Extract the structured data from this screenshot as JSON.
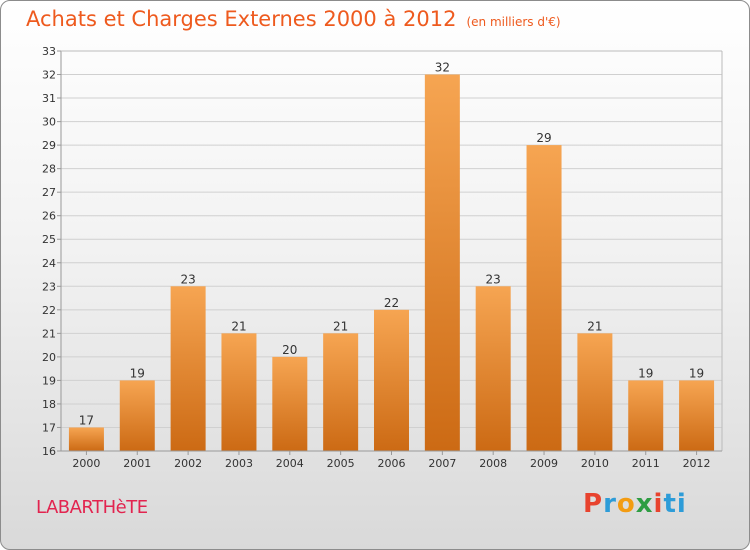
{
  "header": {
    "title": "Achats et Charges Externes 2000 à 2012",
    "subtitle": "(en milliers d'€)"
  },
  "footer": {
    "commune": "LABARTHèTE",
    "logo_letters": [
      "P",
      "r",
      "o",
      "x",
      "i",
      "ti"
    ]
  },
  "colors": {
    "bar_top": "#f6a552",
    "bar_bottom": "#cc6a14",
    "title": "#ee5a1e",
    "commune": "#e2244f"
  },
  "chart_data": {
    "type": "bar",
    "categories": [
      "2000",
      "2001",
      "2002",
      "2003",
      "2004",
      "2005",
      "2006",
      "2007",
      "2008",
      "2009",
      "2010",
      "2011",
      "2012"
    ],
    "values": [
      17,
      19,
      23,
      21,
      20,
      21,
      22,
      32,
      23,
      29,
      21,
      19,
      19
    ],
    "ylim": [
      16,
      33
    ],
    "yticks": [
      16,
      17,
      18,
      19,
      20,
      21,
      22,
      23,
      24,
      25,
      26,
      27,
      28,
      29,
      30,
      31,
      32,
      33
    ],
    "grid": true,
    "data_labels": true
  }
}
